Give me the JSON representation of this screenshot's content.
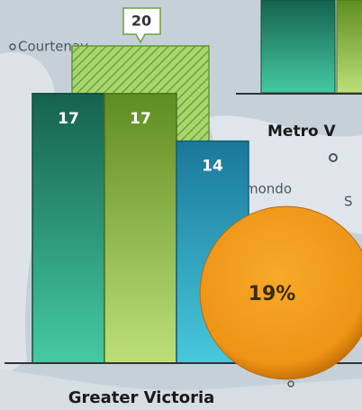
{
  "chart_data": {
    "type": "bar",
    "title": "Greater Victoria",
    "values": [
      17,
      17,
      14
    ],
    "colors": [
      "#1e7a62",
      "#7aa43a",
      "#2590b0"
    ],
    "reference_value": 20,
    "reference_color": "#9ccc60",
    "percent_value": 19,
    "percent_label": "19%",
    "percent_color": "#f29a1c",
    "neighbor_label": "Metro V",
    "map_labels": [
      "Courtenay",
      "mondo",
      "S"
    ]
  }
}
